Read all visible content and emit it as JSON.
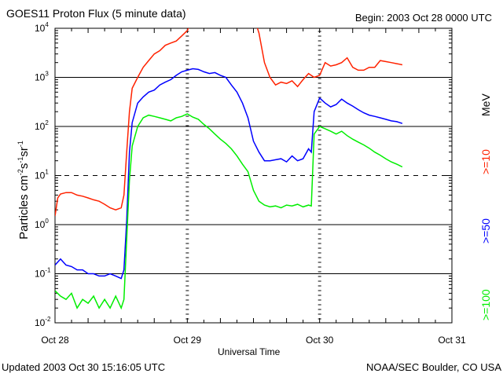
{
  "header": {
    "title": "GOES11 Proton Flux (5 minute data)",
    "begin": "Begin: 2003 Oct 28 0000 UTC"
  },
  "footer": {
    "updated": "Updated 2003 Oct 30 15:16:05 UTC",
    "credit": "NOAA/SEC Boulder, CO USA"
  },
  "chart_data": {
    "type": "line",
    "title": "GOES11 Proton Flux (5 minute data)",
    "xlabel": "Universal Time",
    "ylabel": "Particles cm-2s-1sr-1",
    "y_scale": "log",
    "ylim": [
      0.01,
      10000
    ],
    "xlim_hours": [
      0,
      72
    ],
    "x_ticks": [
      {
        "hour": 0,
        "label": "Oct 28"
      },
      {
        "hour": 24,
        "label": "Oct 29"
      },
      {
        "hour": 48,
        "label": "Oct 30"
      },
      {
        "hour": 72,
        "label": "Oct 31"
      }
    ],
    "y_ticks": [
      {
        "value": 0.01,
        "base": "10",
        "exp": "-2"
      },
      {
        "value": 0.1,
        "base": "10",
        "exp": "-1"
      },
      {
        "value": 1,
        "base": "10",
        "exp": "0"
      },
      {
        "value": 10,
        "base": "10",
        "exp": "1"
      },
      {
        "value": 100,
        "base": "10",
        "exp": "2"
      },
      {
        "value": 1000,
        "base": "10",
        "exp": "3"
      },
      {
        "value": 10000,
        "base": "10",
        "exp": "4"
      }
    ],
    "solid_lines": [
      0.1,
      1,
      100,
      1000
    ],
    "dashed_lines": [
      10
    ],
    "legend_unit": "MeV",
    "series": [
      {
        "name": ">=10",
        "color": "#ff2200",
        "points": [
          [
            0,
            1.5
          ],
          [
            0.5,
            3.5
          ],
          [
            1,
            4.2
          ],
          [
            2,
            4.5
          ],
          [
            3,
            4.5
          ],
          [
            4,
            4.0
          ],
          [
            5,
            3.8
          ],
          [
            6,
            3.5
          ],
          [
            7,
            3.2
          ],
          [
            8,
            3.0
          ],
          [
            9,
            2.6
          ],
          [
            10,
            2.2
          ],
          [
            11,
            2.0
          ],
          [
            12,
            2.2
          ],
          [
            12.5,
            4
          ],
          [
            13,
            30
          ],
          [
            13.5,
            200
          ],
          [
            14,
            600
          ],
          [
            15,
            1000
          ],
          [
            16,
            1600
          ],
          [
            17,
            2200
          ],
          [
            18,
            3000
          ],
          [
            19,
            3500
          ],
          [
            20,
            4500
          ],
          [
            21,
            5000
          ],
          [
            22,
            5500
          ],
          [
            23,
            7000
          ],
          [
            24,
            9000
          ],
          [
            24.5,
            12000
          ]
        ],
        "points_b": [
          [
            36.5,
            12000
          ],
          [
            37,
            8000
          ],
          [
            37.5,
            4000
          ],
          [
            38,
            2000
          ],
          [
            39,
            1000
          ],
          [
            40,
            700
          ],
          [
            41,
            800
          ],
          [
            42,
            750
          ],
          [
            43,
            850
          ],
          [
            44,
            650
          ],
          [
            45,
            900
          ],
          [
            46,
            1200
          ],
          [
            47,
            1000
          ],
          [
            48,
            1100
          ],
          [
            49,
            2000
          ],
          [
            50,
            1700
          ],
          [
            51,
            1800
          ],
          [
            52,
            2000
          ],
          [
            53,
            2500
          ],
          [
            54,
            1600
          ],
          [
            55,
            1400
          ],
          [
            56,
            1400
          ],
          [
            57,
            1600
          ],
          [
            58,
            1600
          ],
          [
            59,
            2200
          ],
          [
            60,
            2100
          ],
          [
            61,
            2000
          ],
          [
            62,
            1900
          ],
          [
            63,
            1800
          ]
        ]
      },
      {
        "name": ">=50",
        "color": "#0000ff",
        "points": [
          [
            0,
            0.15
          ],
          [
            1,
            0.2
          ],
          [
            2,
            0.15
          ],
          [
            3,
            0.14
          ],
          [
            4,
            0.12
          ],
          [
            5,
            0.12
          ],
          [
            6,
            0.1
          ],
          [
            7,
            0.1
          ],
          [
            8,
            0.09
          ],
          [
            9,
            0.09
          ],
          [
            10,
            0.1
          ],
          [
            11,
            0.09
          ],
          [
            12,
            0.08
          ],
          [
            12.5,
            0.12
          ],
          [
            13,
            1.2
          ],
          [
            13.5,
            30
          ],
          [
            14,
            120
          ],
          [
            15,
            300
          ],
          [
            16,
            400
          ],
          [
            17,
            500
          ],
          [
            18,
            550
          ],
          [
            19,
            700
          ],
          [
            20,
            800
          ],
          [
            21,
            900
          ],
          [
            22,
            1100
          ],
          [
            23,
            1300
          ],
          [
            24,
            1400
          ],
          [
            25,
            1500
          ],
          [
            26,
            1450
          ],
          [
            27,
            1300
          ],
          [
            28,
            1200
          ],
          [
            29,
            1250
          ],
          [
            30,
            1100
          ],
          [
            31,
            1000
          ],
          [
            32,
            700
          ],
          [
            33,
            500
          ],
          [
            34,
            300
          ],
          [
            35,
            150
          ],
          [
            36,
            50
          ],
          [
            37,
            30
          ],
          [
            38,
            20
          ],
          [
            39,
            20
          ],
          [
            40,
            21
          ],
          [
            41,
            22
          ],
          [
            42,
            19
          ],
          [
            43,
            25
          ],
          [
            44,
            20
          ],
          [
            45,
            22
          ],
          [
            46,
            35
          ],
          [
            46.5,
            30
          ],
          [
            47,
            200
          ],
          [
            48,
            380
          ],
          [
            49,
            300
          ],
          [
            50,
            250
          ],
          [
            51,
            280
          ],
          [
            52,
            360
          ],
          [
            53,
            300
          ],
          [
            54,
            260
          ],
          [
            55,
            220
          ],
          [
            56,
            190
          ],
          [
            57,
            170
          ],
          [
            58,
            160
          ],
          [
            59,
            150
          ],
          [
            60,
            140
          ],
          [
            61,
            130
          ],
          [
            62,
            125
          ],
          [
            63,
            115
          ]
        ]
      },
      {
        "name": ">=100",
        "color": "#00ee00",
        "points": [
          [
            0,
            0.045
          ],
          [
            1,
            0.035
          ],
          [
            2,
            0.03
          ],
          [
            3,
            0.04
          ],
          [
            4,
            0.02
          ],
          [
            5,
            0.03
          ],
          [
            6,
            0.025
          ],
          [
            7,
            0.035
          ],
          [
            8,
            0.02
          ],
          [
            9,
            0.03
          ],
          [
            10,
            0.02
          ],
          [
            11,
            0.035
          ],
          [
            12,
            0.02
          ],
          [
            12.5,
            0.03
          ],
          [
            13,
            0.5
          ],
          [
            13.5,
            8
          ],
          [
            14,
            40
          ],
          [
            15,
            100
          ],
          [
            16,
            150
          ],
          [
            17,
            170
          ],
          [
            18,
            160
          ],
          [
            19,
            150
          ],
          [
            20,
            140
          ],
          [
            21,
            130
          ],
          [
            22,
            150
          ],
          [
            23,
            160
          ],
          [
            24,
            180
          ],
          [
            25,
            155
          ],
          [
            26,
            140
          ],
          [
            27,
            110
          ],
          [
            28,
            90
          ],
          [
            29,
            70
          ],
          [
            30,
            55
          ],
          [
            31,
            45
          ],
          [
            32,
            35
          ],
          [
            33,
            25
          ],
          [
            34,
            17
          ],
          [
            35,
            12
          ],
          [
            36,
            5
          ],
          [
            37,
            3
          ],
          [
            38,
            2.5
          ],
          [
            39,
            2.3
          ],
          [
            40,
            2.4
          ],
          [
            41,
            2.2
          ],
          [
            42,
            2.5
          ],
          [
            43,
            2.4
          ],
          [
            44,
            2.6
          ],
          [
            45,
            2.3
          ],
          [
            46,
            2.5
          ],
          [
            46.5,
            2.4
          ],
          [
            47,
            70
          ],
          [
            48,
            100
          ],
          [
            49,
            90
          ],
          [
            50,
            80
          ],
          [
            51,
            70
          ],
          [
            52,
            80
          ],
          [
            53,
            65
          ],
          [
            54,
            55
          ],
          [
            55,
            48
          ],
          [
            56,
            42
          ],
          [
            57,
            36
          ],
          [
            58,
            30
          ],
          [
            59,
            26
          ],
          [
            60,
            22
          ],
          [
            61,
            19
          ],
          [
            62,
            17
          ],
          [
            63,
            15
          ]
        ]
      }
    ]
  }
}
